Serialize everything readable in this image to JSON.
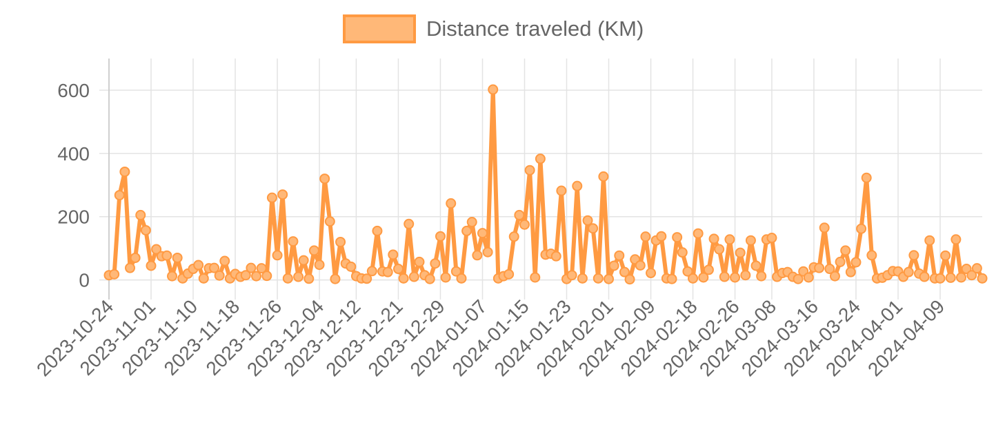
{
  "chart_data": {
    "type": "line",
    "title": "",
    "xlabel": "",
    "ylabel": "",
    "ylim": [
      -40,
      700
    ],
    "y_ticks": [
      "0",
      "200",
      "400",
      "600"
    ],
    "grid": true,
    "legend_position": "top",
    "series": [
      {
        "name": "Distance traveled (KM)",
        "color": "#FF9A42",
        "fill_color": "#FFB878",
        "values": [
          15,
          18,
          268,
          342,
          38,
          70,
          205,
          157,
          45,
          97,
          75,
          77,
          12,
          70,
          5,
          20,
          35,
          47,
          5,
          37,
          38,
          14,
          60,
          5,
          19,
          10,
          15,
          38,
          12,
          37,
          13,
          260,
          78,
          270,
          5,
          122,
          10,
          62,
          4,
          93,
          48,
          320,
          185,
          3,
          120,
          52,
          42,
          12,
          5,
          4,
          28,
          155,
          27,
          25,
          80,
          35,
          5,
          177,
          10,
          57,
          15,
          3,
          52,
          138,
          8,
          242,
          27,
          5,
          155,
          183,
          78,
          148,
          88,
          602,
          5,
          12,
          18,
          137,
          205,
          175,
          347,
          8,
          383,
          80,
          83,
          75,
          282,
          3,
          15,
          297,
          5,
          188,
          163,
          5,
          327,
          3,
          45,
          77,
          25,
          2,
          65,
          46,
          137,
          22,
          125,
          138,
          5,
          3,
          135,
          87,
          27,
          5,
          147,
          8,
          32,
          130,
          97,
          10,
          128,
          8,
          86,
          15,
          125,
          45,
          12,
          128,
          133,
          10,
          22,
          25,
          10,
          3,
          27,
          8,
          40,
          38,
          165,
          35,
          12,
          57,
          93,
          25,
          56,
          162,
          323,
          78,
          5,
          7,
          15,
          28,
          27,
          10,
          25,
          78,
          20,
          10,
          125,
          5,
          5,
          77,
          7,
          128,
          8,
          35,
          15,
          37,
          5
        ]
      }
    ],
    "x_tick_labels": [
      "2023-10-24",
      "2023-11-01",
      "2023-11-10",
      "2023-11-18",
      "2023-11-26",
      "2023-12-04",
      "2023-12-12",
      "2023-12-21",
      "2023-12-29",
      "2024-01-07",
      "2024-01-15",
      "2024-01-23",
      "2024-02-01",
      "2024-02-09",
      "2024-02-18",
      "2024-02-26",
      "2024-03-08",
      "2024-03-16",
      "2024-03-24",
      "2024-04-01",
      "2024-04-09"
    ]
  }
}
